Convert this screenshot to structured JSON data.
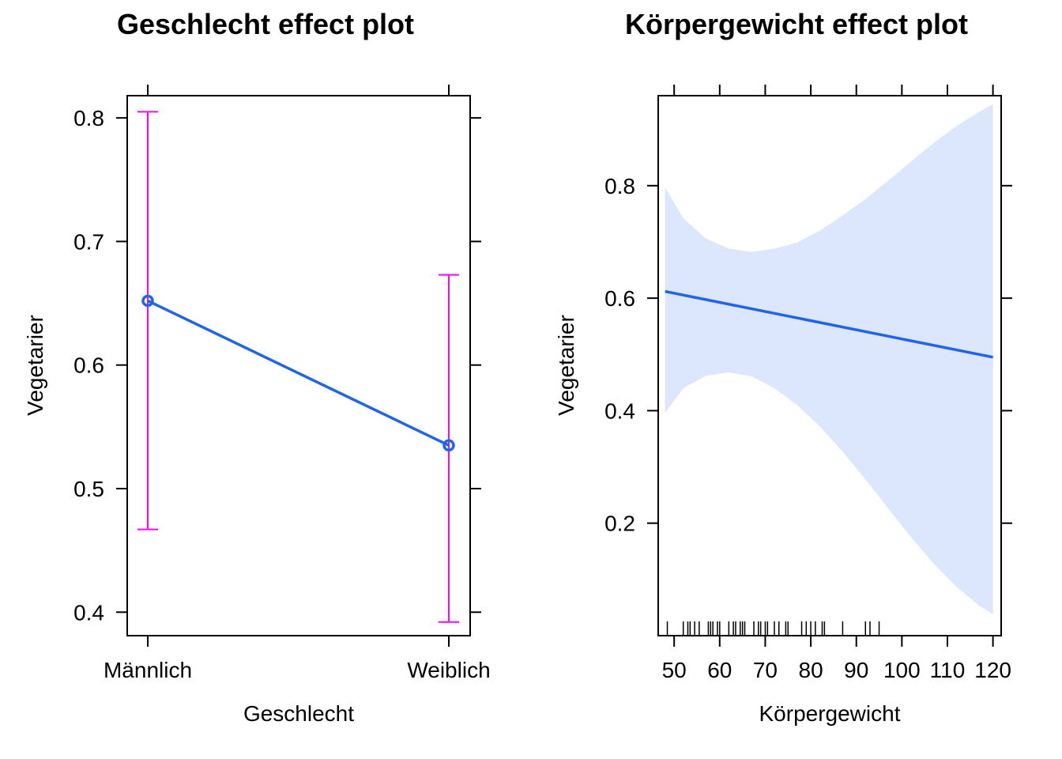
{
  "chart_data": [
    {
      "type": "line",
      "title": "Geschlecht effect plot",
      "xlabel": "Geschlecht",
      "ylabel": "Vegetarier",
      "categories": [
        "Männlich",
        "Weiblich"
      ],
      "values": [
        0.652,
        0.535
      ],
      "lower": [
        0.467,
        0.392
      ],
      "upper": [
        0.805,
        0.673
      ],
      "yticks": [
        0.4,
        0.5,
        0.6,
        0.7,
        0.8
      ],
      "ytick_labels": [
        "0.4",
        "0.5",
        "0.6",
        "0.7",
        "0.8"
      ],
      "ylim": [
        0.381,
        0.818
      ],
      "grid": false,
      "colors": {
        "line": "#1E64F0",
        "ci": "#FF00FF"
      }
    },
    {
      "type": "line",
      "title": "Körpergewicht effect plot",
      "xlabel": "Körpergewicht",
      "ylabel": "Vegetarier",
      "x": [
        48,
        120
      ],
      "y": [
        0.612,
        0.495
      ],
      "band_x": [
        48,
        52,
        57,
        62,
        67,
        72,
        77,
        82,
        87,
        92,
        97,
        102,
        107,
        112,
        117,
        120
      ],
      "band_lower": [
        0.396,
        0.44,
        0.462,
        0.468,
        0.461,
        0.44,
        0.41,
        0.372,
        0.327,
        0.278,
        0.226,
        0.175,
        0.128,
        0.087,
        0.053,
        0.038
      ],
      "band_upper": [
        0.797,
        0.742,
        0.706,
        0.688,
        0.682,
        0.688,
        0.699,
        0.72,
        0.747,
        0.776,
        0.809,
        0.843,
        0.876,
        0.906,
        0.931,
        0.945
      ],
      "xticks": [
        50,
        60,
        70,
        80,
        90,
        100,
        110,
        120
      ],
      "xtick_labels": [
        "50",
        "60",
        "70",
        "80",
        "90",
        "100",
        "110",
        "120"
      ],
      "yticks": [
        0.2,
        0.4,
        0.6,
        0.8
      ],
      "ytick_labels": [
        "0.2",
        "0.4",
        "0.6",
        "0.8"
      ],
      "xlim": [
        46.5,
        121.8
      ],
      "ylim": [
        0.0,
        0.96
      ],
      "rug": [
        48.5,
        52,
        53,
        53.5,
        54.5,
        55.5,
        57.5,
        58,
        58.5,
        59.5,
        60,
        62,
        63,
        63.5,
        64.5,
        65,
        65.5,
        67.5,
        68.5,
        69,
        70,
        70.5,
        72,
        73,
        74.5,
        75,
        78,
        79,
        80,
        81,
        82.5,
        83,
        87,
        92,
        93,
        95
      ],
      "grid": false,
      "colors": {
        "line": "#1E64F0",
        "band": "#DCE6FC"
      }
    }
  ]
}
